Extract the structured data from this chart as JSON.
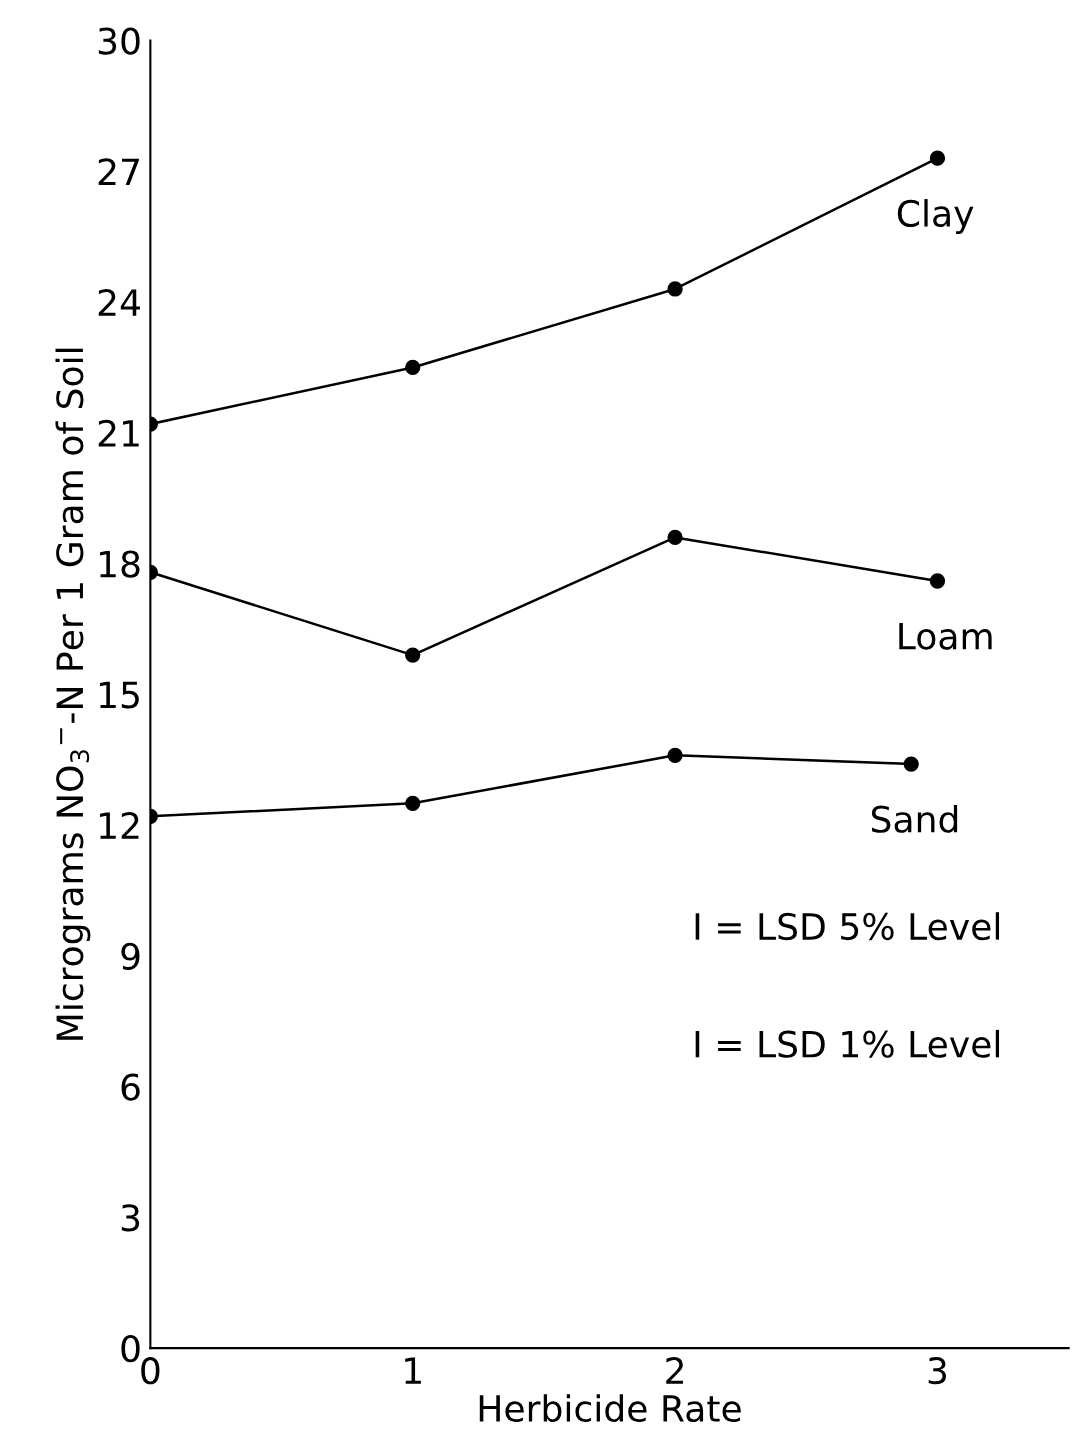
{
  "chart_data": {
    "type": "line",
    "xlabel": "Herbicide Rate",
    "ylabel": "Micrograms NO$_{3}$$^{−}$-N Per 1 Gram of Soil",
    "xlim": [
      0,
      3.5
    ],
    "xticks": [
      0,
      1,
      2,
      3
    ],
    "ylim": [
      0,
      30
    ],
    "yticks": [
      0,
      3,
      6,
      9,
      12,
      15,
      18,
      21,
      24,
      27,
      30
    ],
    "marker": "circle",
    "line_style": "solid",
    "grid": false,
    "legend": false,
    "series": [
      {
        "name": "Clay",
        "color": "#000000",
        "x": [
          0,
          1,
          2,
          3
        ],
        "values": [
          21.2,
          22.5,
          24.3,
          27.3
        ]
      },
      {
        "name": "Loam",
        "color": "#000000",
        "x": [
          0,
          1,
          2,
          3
        ],
        "values": [
          17.8,
          15.9,
          18.6,
          17.6
        ]
      },
      {
        "name": "Sand",
        "color": "#000000",
        "x": [
          0,
          1,
          2,
          2.9
        ],
        "values": [
          12.2,
          12.5,
          13.6,
          13.4
        ]
      }
    ],
    "annotations": [
      "I = LSD 5% Level",
      "I = LSD 1% Level"
    ]
  }
}
